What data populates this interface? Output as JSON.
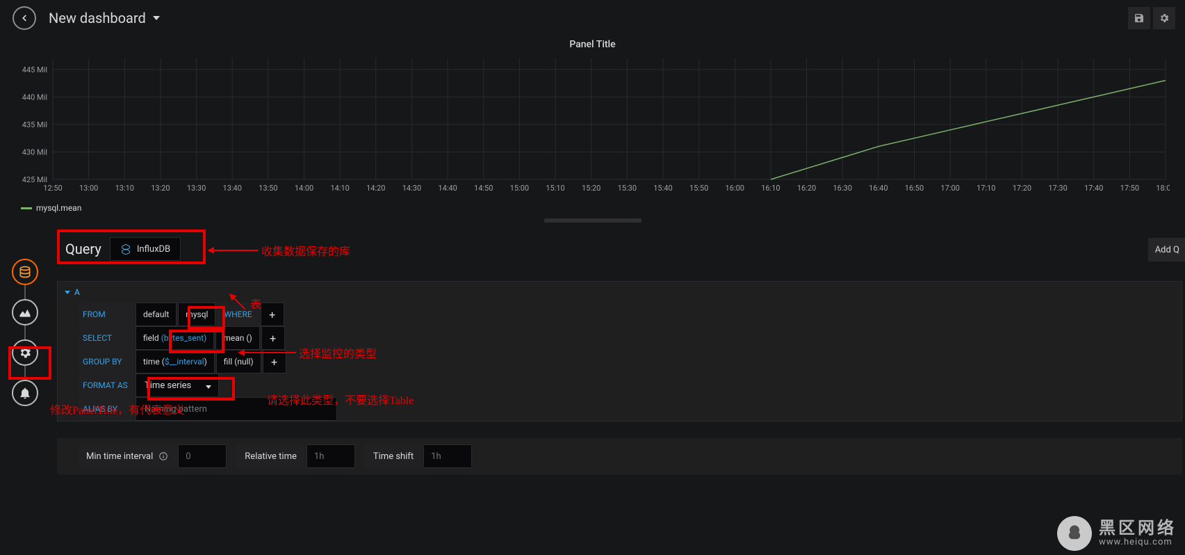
{
  "header": {
    "title": "New dashboard"
  },
  "panel": {
    "title": "Panel Title",
    "legend": "mysql.mean"
  },
  "chart": {
    "type": "line",
    "ylabel_suffix": " Mil",
    "yticks": [
      425,
      430,
      435,
      440,
      445
    ],
    "ylim": [
      425,
      447
    ],
    "xticks": [
      "12:50",
      "13:00",
      "13:10",
      "13:20",
      "13:30",
      "13:40",
      "13:50",
      "14:00",
      "14:10",
      "14:20",
      "14:30",
      "14:40",
      "14:50",
      "15:00",
      "15:10",
      "15:20",
      "15:30",
      "15:40",
      "15:50",
      "16:00",
      "16:10",
      "16:20",
      "16:30",
      "16:40",
      "16:50",
      "17:00",
      "17:10",
      "17:20",
      "17:30",
      "17:40",
      "17:50",
      "18:00"
    ],
    "series": [
      {
        "name": "mysql.mean",
        "color": "#7eb26d",
        "points": [
          {
            "x": "16:10",
            "y": 425
          },
          {
            "x": "16:20",
            "y": 427
          },
          {
            "x": "16:30",
            "y": 429
          },
          {
            "x": "16:40",
            "y": 431
          },
          {
            "x": "16:50",
            "y": 432.5
          },
          {
            "x": "17:00",
            "y": 434
          },
          {
            "x": "17:10",
            "y": 435.5
          },
          {
            "x": "17:20",
            "y": 437
          },
          {
            "x": "17:30",
            "y": 438.5
          },
          {
            "x": "17:40",
            "y": 440
          },
          {
            "x": "17:50",
            "y": 441.5
          },
          {
            "x": "18:00",
            "y": 443
          }
        ]
      }
    ],
    "background_color": "#161719",
    "grid_color": "#2b2b2d",
    "axis_label_color": "#9da0a3",
    "axis_label_fontsize": 11,
    "line_width": 1.5
  },
  "sidetabs": {
    "query": "Query",
    "visualization": "Visualization",
    "general": "General",
    "alert": "Alert"
  },
  "query": {
    "heading": "Query",
    "datasource": "InfluxDB",
    "add_query": "Add Q",
    "row_id": "A",
    "keywords": {
      "from": "FROM",
      "select": "SELECT",
      "groupby": "GROUP BY",
      "formatas": "FORMAT AS",
      "aliasby": "ALIAS BY",
      "where": "WHERE"
    },
    "from_default": "default",
    "from_measurement": "mysql",
    "select_field_label": "field",
    "select_field_value": "(bytes_sent)",
    "select_agg": "mean ()",
    "groupby_time_label": "time",
    "groupby_time_value": "$__interval",
    "groupby_fill": "fill (null)",
    "format_as": "Time series",
    "alias_placeholder": "Naming pattern"
  },
  "options": {
    "min_interval_label": "Min time interval",
    "min_interval_value": "0",
    "relative_label": "Relative time",
    "relative_placeholder": "1h",
    "shift_label": "Time shift",
    "shift_placeholder": "1h"
  },
  "annotations": {
    "datasource": "收集数据保存的库",
    "table": "表",
    "select": "选择监控的类型",
    "format": "请选择此类型，不要选择Table",
    "title": "修改PanelTitle，有代表意义"
  },
  "watermark": {
    "big": "黑区网络",
    "small": "www.heiqu.com"
  }
}
